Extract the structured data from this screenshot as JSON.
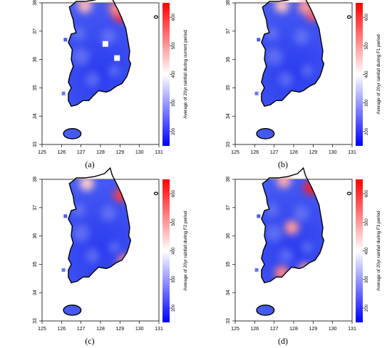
{
  "figure": {
    "panel_labels": [
      "(a)",
      "(b)",
      "(c)",
      "(d)"
    ]
  },
  "colors": {
    "low": "#0000ff",
    "mid": "#ffffff",
    "high": "#ff0000",
    "coast": "#000000"
  },
  "chart_data": [
    {
      "type": "heatmap",
      "panel": "(a)",
      "x_ticks": [
        "125",
        "126",
        "127",
        "128",
        "129",
        "130",
        "131"
      ],
      "y_ticks": [
        "33",
        "34",
        "35",
        "36",
        "37",
        "38"
      ],
      "xlim": [
        125,
        131
      ],
      "ylim": [
        33,
        38
      ],
      "colorbar_label": "Average of 20yr rainfall during current period",
      "colorbar_ticks": [
        "200",
        "300",
        "400",
        "500",
        "600"
      ],
      "colorbar_range": [
        150,
        650
      ],
      "grid": false,
      "hotspots": [
        {
          "lon": 127.2,
          "lat": 37.9,
          "value": 470
        },
        {
          "lon": 129.05,
          "lat": 37.55,
          "value": 600
        },
        {
          "lon": 128.8,
          "lat": 37.8,
          "value": 520
        }
      ],
      "missing_cells": [
        {
          "lon": 128.25,
          "lat": 36.55
        },
        {
          "lon": 128.85,
          "lat": 36.05
        }
      ]
    },
    {
      "type": "heatmap",
      "panel": "(b)",
      "x_ticks": [
        "125",
        "126",
        "127",
        "128",
        "129",
        "130",
        "131"
      ],
      "y_ticks": [
        "33",
        "34",
        "35",
        "36",
        "37",
        "38"
      ],
      "xlim": [
        125,
        131
      ],
      "ylim": [
        33,
        38
      ],
      "colorbar_label": "Average of 20yr rainfall during F1 period",
      "colorbar_ticks": [
        "200",
        "300",
        "400",
        "500",
        "600"
      ],
      "colorbar_range": [
        150,
        650
      ],
      "grid": false,
      "hotspots": [
        {
          "lon": 127.4,
          "lat": 37.9,
          "value": 460
        },
        {
          "lon": 129.0,
          "lat": 37.6,
          "value": 560
        },
        {
          "lon": 128.6,
          "lat": 37.85,
          "value": 500
        }
      ],
      "missing_cells": []
    },
    {
      "type": "heatmap",
      "panel": "(c)",
      "x_ticks": [
        "125",
        "126",
        "127",
        "128",
        "129",
        "130",
        "131"
      ],
      "y_ticks": [
        "33",
        "34",
        "35",
        "36",
        "37",
        "38"
      ],
      "xlim": [
        125,
        131
      ],
      "ylim": [
        33,
        38
      ],
      "colorbar_label": "Average of 20yr rainfall during F2 period",
      "colorbar_ticks": [
        "200",
        "300",
        "400",
        "500",
        "600"
      ],
      "colorbar_range": [
        150,
        650
      ],
      "grid": false,
      "hotspots": [
        {
          "lon": 127.3,
          "lat": 37.85,
          "value": 450
        },
        {
          "lon": 129.05,
          "lat": 37.45,
          "value": 590
        },
        {
          "lon": 129.25,
          "lat": 35.1,
          "value": 520
        }
      ],
      "missing_cells": []
    },
    {
      "type": "heatmap",
      "panel": "(d)",
      "x_ticks": [
        "125",
        "126",
        "127",
        "128",
        "129",
        "130",
        "131"
      ],
      "y_ticks": [
        "33",
        "34",
        "35",
        "36",
        "37",
        "38"
      ],
      "xlim": [
        125,
        131
      ],
      "ylim": [
        33,
        38
      ],
      "colorbar_label": "Average of 20yr rainfall during F3 period",
      "colorbar_ticks": [
        "200",
        "300",
        "400",
        "500",
        "600"
      ],
      "colorbar_range": [
        150,
        650
      ],
      "grid": false,
      "hotspots": [
        {
          "lon": 128.9,
          "lat": 37.7,
          "value": 620
        },
        {
          "lon": 127.5,
          "lat": 37.95,
          "value": 480
        },
        {
          "lon": 127.9,
          "lat": 36.3,
          "value": 500
        },
        {
          "lon": 127.4,
          "lat": 34.7,
          "value": 520
        },
        {
          "lon": 128.6,
          "lat": 34.8,
          "value": 500
        }
      ],
      "missing_cells": []
    }
  ]
}
